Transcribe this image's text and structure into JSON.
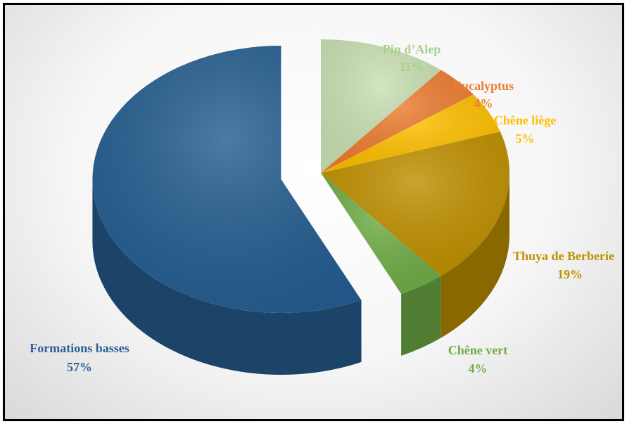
{
  "chart_data": {
    "type": "pie",
    "title": "",
    "slices": [
      {
        "label": "Pin d’Alep",
        "value": 11,
        "value_label": "11%",
        "color": "#c9e0b4"
      },
      {
        "label": "Eucalyptus",
        "value": 4,
        "value_label": "4%",
        "color": "#ed7d31"
      },
      {
        "label": "Chêne liège",
        "value": 5,
        "value_label": "5%",
        "color": "#ffc000"
      },
      {
        "label": "Thuya de Berberie",
        "value": 19,
        "value_label": "19%",
        "color": "#bf9000"
      },
      {
        "label": "Chêne vert",
        "value": 4,
        "value_label": "4%",
        "color": "#70ad47"
      },
      {
        "label": "Formations basses",
        "value": 57,
        "value_label": "57%",
        "color": "#255e91"
      }
    ],
    "exploded": "Formations basses",
    "style": "3d"
  }
}
